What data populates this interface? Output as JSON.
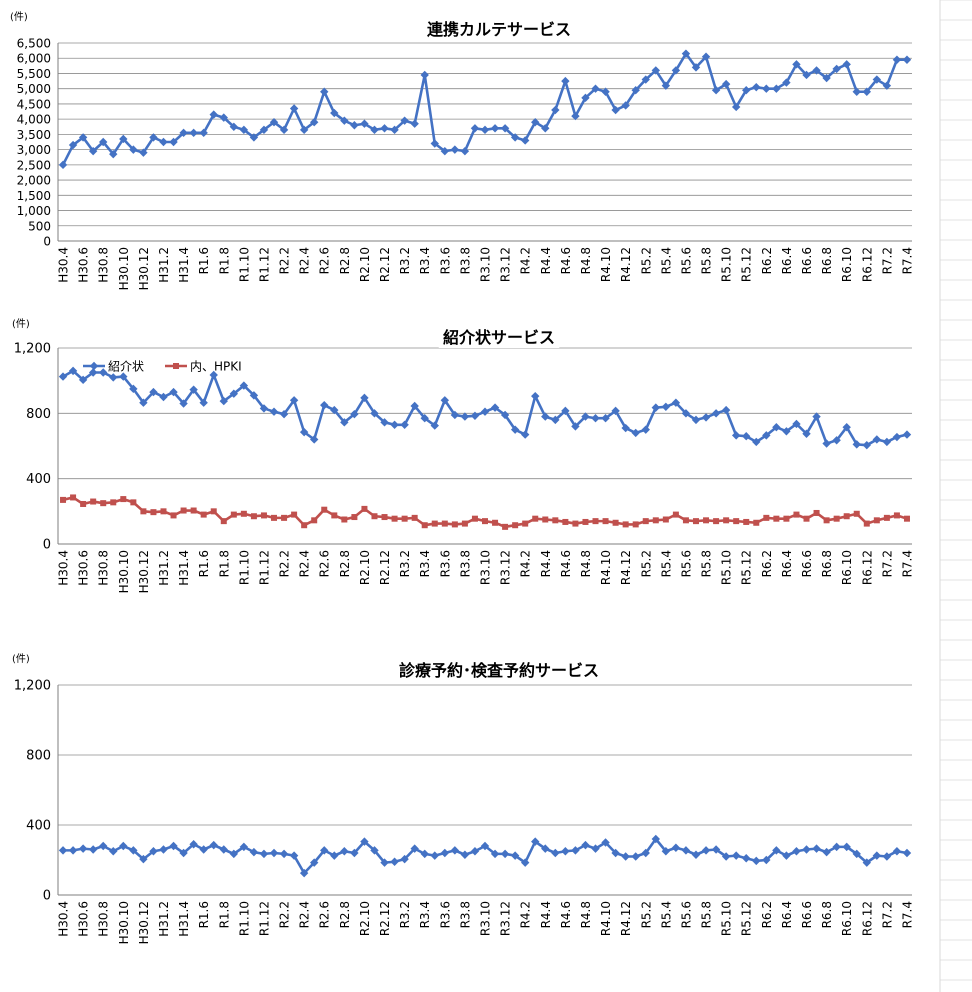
{
  "chart_data": [
    {
      "type": "line",
      "title": "連携カルテサービス",
      "unit_label": "(件)",
      "ylim": [
        0,
        6500
      ],
      "yticks": [
        0,
        500,
        1000,
        1500,
        2000,
        2500,
        3000,
        3500,
        4000,
        4500,
        5000,
        5500,
        6000,
        6500
      ],
      "ytick_labels": [
        "0",
        "500",
        "1,000",
        "1,500",
        "2,000",
        "2,500",
        "3,000",
        "3,500",
        "4,000",
        "4,500",
        "5,000",
        "5,500",
        "6,000",
        "6,500"
      ],
      "x_labels": [
        "H30.4",
        "H30.6",
        "H30.8",
        "H30.10",
        "H30.12",
        "H31.2",
        "H31.4",
        "R1.6",
        "R1.8",
        "R1.10",
        "R1.12",
        "R2.2",
        "R2.4",
        "R2.6",
        "R2.8",
        "R2.10",
        "R2.12",
        "R3.2",
        "R3.4",
        "R3.6",
        "R3.8",
        "R3.10",
        "R3.12",
        "R4.2",
        "R4.4",
        "R4.6",
        "R4.8",
        "R4.10",
        "R4.12",
        "R5.2",
        "R5.4",
        "R5.6",
        "R5.8",
        "R5.10",
        "R5.12",
        "R6.2",
        "R6.4",
        "R6.6",
        "R6.8",
        "R6.10",
        "R6.12",
        "R7.2",
        "R7.4"
      ],
      "legend": "none",
      "grid": true,
      "series": [
        {
          "color": "#4472C4",
          "values": [
            2500,
            3150,
            3400,
            2950,
            3250,
            2850,
            3350,
            3000,
            2900,
            3400,
            3250,
            3250,
            3550,
            3550,
            3550,
            4150,
            4050,
            3750,
            3650,
            3400,
            3650,
            3900,
            3650,
            4350,
            3650,
            3900,
            4900,
            4200,
            3950,
            3800,
            3850,
            3650,
            3700,
            3650,
            3950,
            3850,
            5450,
            3200,
            2950,
            3000,
            2950,
            3700,
            3650,
            3700,
            3700,
            3400,
            3300,
            3900,
            3700,
            4300,
            5250,
            4100,
            4700,
            5000,
            4900,
            4300,
            4450,
            4950,
            5300,
            5600,
            5100,
            5600,
            6150,
            5700,
            6050,
            4950,
            5150,
            4400,
            4950,
            5050,
            5000,
            5000,
            5200,
            5800,
            5450,
            5600,
            5350,
            5650,
            5800,
            4900,
            4900,
            5300,
            5100,
            5950,
            5950
          ]
        }
      ]
    },
    {
      "type": "line",
      "title": "紹介状サービス",
      "unit_label": "(件)",
      "ylim": [
        0,
        1200
      ],
      "yticks": [
        0,
        400,
        800,
        1200
      ],
      "ytick_labels": [
        "0",
        "400",
        "800",
        "1,200"
      ],
      "x_labels": [
        "H30.4",
        "H30.6",
        "H30.8",
        "H30.10",
        "H30.12",
        "H31.2",
        "H31.4",
        "R1.6",
        "R1.8",
        "R1.10",
        "R1.12",
        "R2.2",
        "R2.4",
        "R2.6",
        "R2.8",
        "R2.10",
        "R2.12",
        "R3.2",
        "R3.4",
        "R3.6",
        "R3.8",
        "R3.10",
        "R3.12",
        "R4.2",
        "R4.4",
        "R4.6",
        "R4.8",
        "R4.10",
        "R4.12",
        "R5.2",
        "R5.4",
        "R5.6",
        "R5.8",
        "R5.10",
        "R5.12",
        "R6.2",
        "R6.4",
        "R6.6",
        "R6.8",
        "R6.10",
        "R6.12",
        "R7.2",
        "R7.4"
      ],
      "legend": "top-left",
      "grid": true,
      "series": [
        {
          "name": "紹介状",
          "color": "#4472C4",
          "values": [
            1025,
            1060,
            1005,
            1050,
            1050,
            1020,
            1025,
            950,
            865,
            930,
            900,
            930,
            860,
            945,
            865,
            1035,
            875,
            920,
            970,
            910,
            830,
            810,
            795,
            880,
            685,
            640,
            850,
            820,
            745,
            795,
            895,
            800,
            745,
            730,
            730,
            845,
            770,
            725,
            880,
            790,
            780,
            785,
            810,
            835,
            790,
            700,
            670,
            905,
            780,
            760,
            815,
            720,
            780,
            770,
            770,
            815,
            710,
            680,
            700,
            835,
            840,
            865,
            800,
            760,
            775,
            800,
            820,
            665,
            660,
            625,
            665,
            715,
            690,
            735,
            675,
            780,
            615,
            635,
            715,
            610,
            605,
            640,
            625,
            655,
            670
          ]
        },
        {
          "name": "内、HPKI",
          "color": "#C0504D",
          "values": [
            270,
            285,
            245,
            260,
            250,
            255,
            275,
            255,
            200,
            195,
            200,
            175,
            205,
            205,
            180,
            200,
            140,
            180,
            185,
            170,
            175,
            160,
            160,
            180,
            115,
            145,
            210,
            175,
            150,
            165,
            215,
            170,
            165,
            155,
            155,
            160,
            115,
            125,
            125,
            120,
            125,
            155,
            140,
            130,
            105,
            115,
            125,
            155,
            150,
            145,
            135,
            125,
            135,
            140,
            140,
            130,
            120,
            120,
            140,
            145,
            150,
            180,
            145,
            140,
            145,
            140,
            145,
            140,
            135,
            130,
            160,
            155,
            155,
            180,
            155,
            190,
            145,
            155,
            170,
            185,
            125,
            145,
            160,
            175,
            155
          ]
        }
      ]
    },
    {
      "type": "line",
      "title": "診療予約･検査予約サービス",
      "unit_label": "(件)",
      "ylim": [
        0,
        1200
      ],
      "yticks": [
        0,
        400,
        800,
        1200
      ],
      "ytick_labels": [
        "0",
        "400",
        "800",
        "1,200"
      ],
      "x_labels": [
        "H30.4",
        "H30.6",
        "H30.8",
        "H30.10",
        "H30.12",
        "H31.2",
        "H31.4",
        "R1.6",
        "R1.8",
        "R1.10",
        "R1.12",
        "R2.2",
        "R2.4",
        "R2.6",
        "R2.8",
        "R2.10",
        "R2.12",
        "R3.2",
        "R3.4",
        "R3.6",
        "R3.8",
        "R3.10",
        "R3.12",
        "R4.2",
        "R4.4",
        "R4.6",
        "R4.8",
        "R4.10",
        "R4.12",
        "R5.2",
        "R5.4",
        "R5.6",
        "R5.8",
        "R5.10",
        "R5.12",
        "R6.2",
        "R6.4",
        "R6.6",
        "R6.8",
        "R6.10",
        "R6.12",
        "R7.2",
        "R7.4"
      ],
      "legend": "none",
      "grid": true,
      "series": [
        {
          "color": "#4472C4",
          "values": [
            255,
            255,
            265,
            260,
            280,
            250,
            280,
            255,
            205,
            250,
            260,
            280,
            240,
            290,
            260,
            285,
            260,
            235,
            275,
            245,
            235,
            240,
            235,
            225,
            125,
            185,
            255,
            225,
            250,
            240,
            305,
            255,
            185,
            190,
            205,
            265,
            235,
            225,
            240,
            255,
            230,
            250,
            280,
            235,
            235,
            225,
            185,
            305,
            265,
            240,
            250,
            255,
            285,
            265,
            300,
            240,
            220,
            220,
            240,
            320,
            250,
            270,
            255,
            230,
            255,
            260,
            220,
            225,
            210,
            195,
            200,
            255,
            225,
            250,
            260,
            265,
            245,
            275,
            275,
            235,
            185,
            225,
            220,
            250,
            240
          ]
        }
      ]
    }
  ]
}
